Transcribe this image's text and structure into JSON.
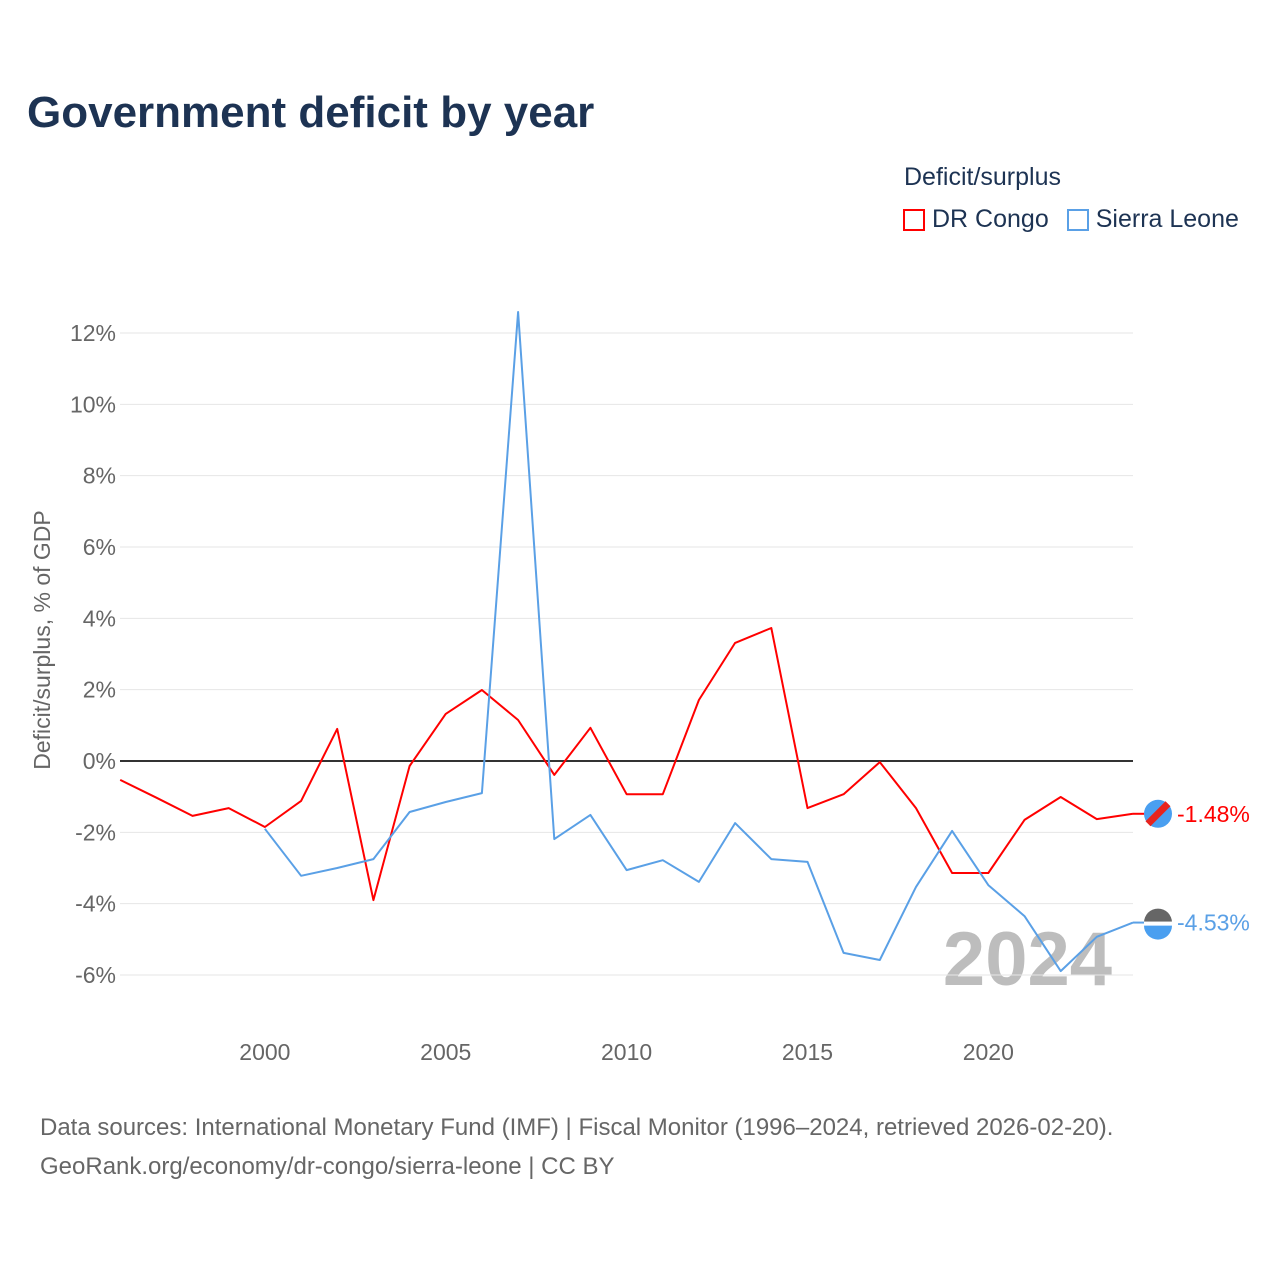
{
  "title": "Government deficit by year",
  "legend": {
    "title": "Deficit/surplus"
  },
  "source": {
    "line1": "Data sources: International Monetary Fund (IMF) | Fiscal Monitor (1996–2024, retrieved 2026-02-20).",
    "line2": "GeoRank.org/economy/dr-congo/sierra-leone | CC BY"
  },
  "year_watermark": "2024",
  "chart_data": {
    "type": "line",
    "title": "Government deficit by year",
    "ylabel": "Deficit/surplus, % of GDP",
    "xlabel": "",
    "xlim": [
      1996,
      2024
    ],
    "ylim": [
      -7,
      13
    ],
    "xticks": [
      2000,
      2005,
      2010,
      2015,
      2020
    ],
    "xtick_labels": [
      "2000",
      "2005",
      "2010",
      "2015",
      "2020"
    ],
    "yticks": [
      -6,
      -4,
      -2,
      0,
      2,
      4,
      6,
      8,
      10,
      12
    ],
    "ytick_labels": [
      "-6%",
      "-4%",
      "-2%",
      "0%",
      "2%",
      "4%",
      "6%",
      "8%",
      "10%",
      "12%"
    ],
    "grid": true,
    "legend_position": "top-right",
    "series": [
      {
        "name": "DR Congo",
        "color": "#ff0000",
        "end_label": "-1.48%",
        "x": [
          1996,
          1997,
          1998,
          1999,
          2000,
          2001,
          2002,
          2003,
          2004,
          2005,
          2006,
          2007,
          2008,
          2009,
          2010,
          2011,
          2012,
          2013,
          2014,
          2015,
          2016,
          2017,
          2018,
          2019,
          2020,
          2021,
          2022,
          2023,
          2024
        ],
        "values": [
          -0.53,
          -1.03,
          -1.54,
          -1.32,
          -1.85,
          -1.12,
          0.9,
          -3.9,
          -0.14,
          1.32,
          1.99,
          1.15,
          -0.39,
          0.93,
          -0.93,
          -0.93,
          1.71,
          3.31,
          3.73,
          -1.32,
          -0.93,
          -0.03,
          -1.32,
          -3.14,
          -3.14,
          -1.65,
          -1.01,
          -1.63,
          -1.48
        ]
      },
      {
        "name": "Sierra Leone",
        "color": "#5aa0e6",
        "end_label": "-4.53%",
        "x": [
          2000,
          2001,
          2002,
          2003,
          2004,
          2005,
          2006,
          2007,
          2008,
          2009,
          2010,
          2011,
          2012,
          2013,
          2014,
          2015,
          2016,
          2017,
          2018,
          2019,
          2020,
          2021,
          2022,
          2023,
          2024
        ],
        "values": [
          -1.9,
          -3.22,
          -3.0,
          -2.75,
          -1.43,
          -1.15,
          -0.9,
          12.59,
          -2.19,
          -1.51,
          -3.06,
          -2.78,
          -3.39,
          -1.74,
          -2.75,
          -2.83,
          -5.38,
          -5.58,
          -3.53,
          -1.96,
          -3.48,
          -4.35,
          -5.89,
          -4.93,
          -4.53
        ]
      }
    ]
  }
}
